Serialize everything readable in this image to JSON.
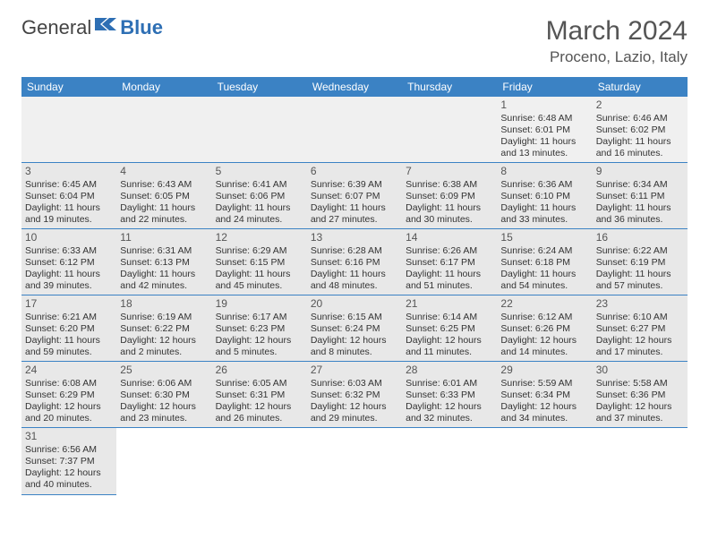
{
  "logo": {
    "text1": "General",
    "text2": "Blue"
  },
  "title": "March 2024",
  "location": "Proceno, Lazio, Italy",
  "colors": {
    "header_bg": "#3b82c4",
    "header_fg": "#ffffff",
    "rule": "#3b82c4",
    "shade": "#e8e8e8"
  },
  "day_headers": [
    "Sunday",
    "Monday",
    "Tuesday",
    "Wednesday",
    "Thursday",
    "Friday",
    "Saturday"
  ],
  "weeks": [
    [
      null,
      null,
      null,
      null,
      null,
      {
        "n": "1",
        "sr": "Sunrise: 6:48 AM",
        "ss": "Sunset: 6:01 PM",
        "dl": "Daylight: 11 hours and 13 minutes."
      },
      {
        "n": "2",
        "sr": "Sunrise: 6:46 AM",
        "ss": "Sunset: 6:02 PM",
        "dl": "Daylight: 11 hours and 16 minutes."
      }
    ],
    [
      {
        "n": "3",
        "sr": "Sunrise: 6:45 AM",
        "ss": "Sunset: 6:04 PM",
        "dl": "Daylight: 11 hours and 19 minutes."
      },
      {
        "n": "4",
        "sr": "Sunrise: 6:43 AM",
        "ss": "Sunset: 6:05 PM",
        "dl": "Daylight: 11 hours and 22 minutes."
      },
      {
        "n": "5",
        "sr": "Sunrise: 6:41 AM",
        "ss": "Sunset: 6:06 PM",
        "dl": "Daylight: 11 hours and 24 minutes."
      },
      {
        "n": "6",
        "sr": "Sunrise: 6:39 AM",
        "ss": "Sunset: 6:07 PM",
        "dl": "Daylight: 11 hours and 27 minutes."
      },
      {
        "n": "7",
        "sr": "Sunrise: 6:38 AM",
        "ss": "Sunset: 6:09 PM",
        "dl": "Daylight: 11 hours and 30 minutes."
      },
      {
        "n": "8",
        "sr": "Sunrise: 6:36 AM",
        "ss": "Sunset: 6:10 PM",
        "dl": "Daylight: 11 hours and 33 minutes."
      },
      {
        "n": "9",
        "sr": "Sunrise: 6:34 AM",
        "ss": "Sunset: 6:11 PM",
        "dl": "Daylight: 11 hours and 36 minutes."
      }
    ],
    [
      {
        "n": "10",
        "sr": "Sunrise: 6:33 AM",
        "ss": "Sunset: 6:12 PM",
        "dl": "Daylight: 11 hours and 39 minutes."
      },
      {
        "n": "11",
        "sr": "Sunrise: 6:31 AM",
        "ss": "Sunset: 6:13 PM",
        "dl": "Daylight: 11 hours and 42 minutes."
      },
      {
        "n": "12",
        "sr": "Sunrise: 6:29 AM",
        "ss": "Sunset: 6:15 PM",
        "dl": "Daylight: 11 hours and 45 minutes."
      },
      {
        "n": "13",
        "sr": "Sunrise: 6:28 AM",
        "ss": "Sunset: 6:16 PM",
        "dl": "Daylight: 11 hours and 48 minutes."
      },
      {
        "n": "14",
        "sr": "Sunrise: 6:26 AM",
        "ss": "Sunset: 6:17 PM",
        "dl": "Daylight: 11 hours and 51 minutes."
      },
      {
        "n": "15",
        "sr": "Sunrise: 6:24 AM",
        "ss": "Sunset: 6:18 PM",
        "dl": "Daylight: 11 hours and 54 minutes."
      },
      {
        "n": "16",
        "sr": "Sunrise: 6:22 AM",
        "ss": "Sunset: 6:19 PM",
        "dl": "Daylight: 11 hours and 57 minutes."
      }
    ],
    [
      {
        "n": "17",
        "sr": "Sunrise: 6:21 AM",
        "ss": "Sunset: 6:20 PM",
        "dl": "Daylight: 11 hours and 59 minutes."
      },
      {
        "n": "18",
        "sr": "Sunrise: 6:19 AM",
        "ss": "Sunset: 6:22 PM",
        "dl": "Daylight: 12 hours and 2 minutes."
      },
      {
        "n": "19",
        "sr": "Sunrise: 6:17 AM",
        "ss": "Sunset: 6:23 PM",
        "dl": "Daylight: 12 hours and 5 minutes."
      },
      {
        "n": "20",
        "sr": "Sunrise: 6:15 AM",
        "ss": "Sunset: 6:24 PM",
        "dl": "Daylight: 12 hours and 8 minutes."
      },
      {
        "n": "21",
        "sr": "Sunrise: 6:14 AM",
        "ss": "Sunset: 6:25 PM",
        "dl": "Daylight: 12 hours and 11 minutes."
      },
      {
        "n": "22",
        "sr": "Sunrise: 6:12 AM",
        "ss": "Sunset: 6:26 PM",
        "dl": "Daylight: 12 hours and 14 minutes."
      },
      {
        "n": "23",
        "sr": "Sunrise: 6:10 AM",
        "ss": "Sunset: 6:27 PM",
        "dl": "Daylight: 12 hours and 17 minutes."
      }
    ],
    [
      {
        "n": "24",
        "sr": "Sunrise: 6:08 AM",
        "ss": "Sunset: 6:29 PM",
        "dl": "Daylight: 12 hours and 20 minutes."
      },
      {
        "n": "25",
        "sr": "Sunrise: 6:06 AM",
        "ss": "Sunset: 6:30 PM",
        "dl": "Daylight: 12 hours and 23 minutes."
      },
      {
        "n": "26",
        "sr": "Sunrise: 6:05 AM",
        "ss": "Sunset: 6:31 PM",
        "dl": "Daylight: 12 hours and 26 minutes."
      },
      {
        "n": "27",
        "sr": "Sunrise: 6:03 AM",
        "ss": "Sunset: 6:32 PM",
        "dl": "Daylight: 12 hours and 29 minutes."
      },
      {
        "n": "28",
        "sr": "Sunrise: 6:01 AM",
        "ss": "Sunset: 6:33 PM",
        "dl": "Daylight: 12 hours and 32 minutes."
      },
      {
        "n": "29",
        "sr": "Sunrise: 5:59 AM",
        "ss": "Sunset: 6:34 PM",
        "dl": "Daylight: 12 hours and 34 minutes."
      },
      {
        "n": "30",
        "sr": "Sunrise: 5:58 AM",
        "ss": "Sunset: 6:36 PM",
        "dl": "Daylight: 12 hours and 37 minutes."
      }
    ],
    [
      {
        "n": "31",
        "sr": "Sunrise: 6:56 AM",
        "ss": "Sunset: 7:37 PM",
        "dl": "Daylight: 12 hours and 40 minutes."
      },
      null,
      null,
      null,
      null,
      null,
      null
    ]
  ]
}
